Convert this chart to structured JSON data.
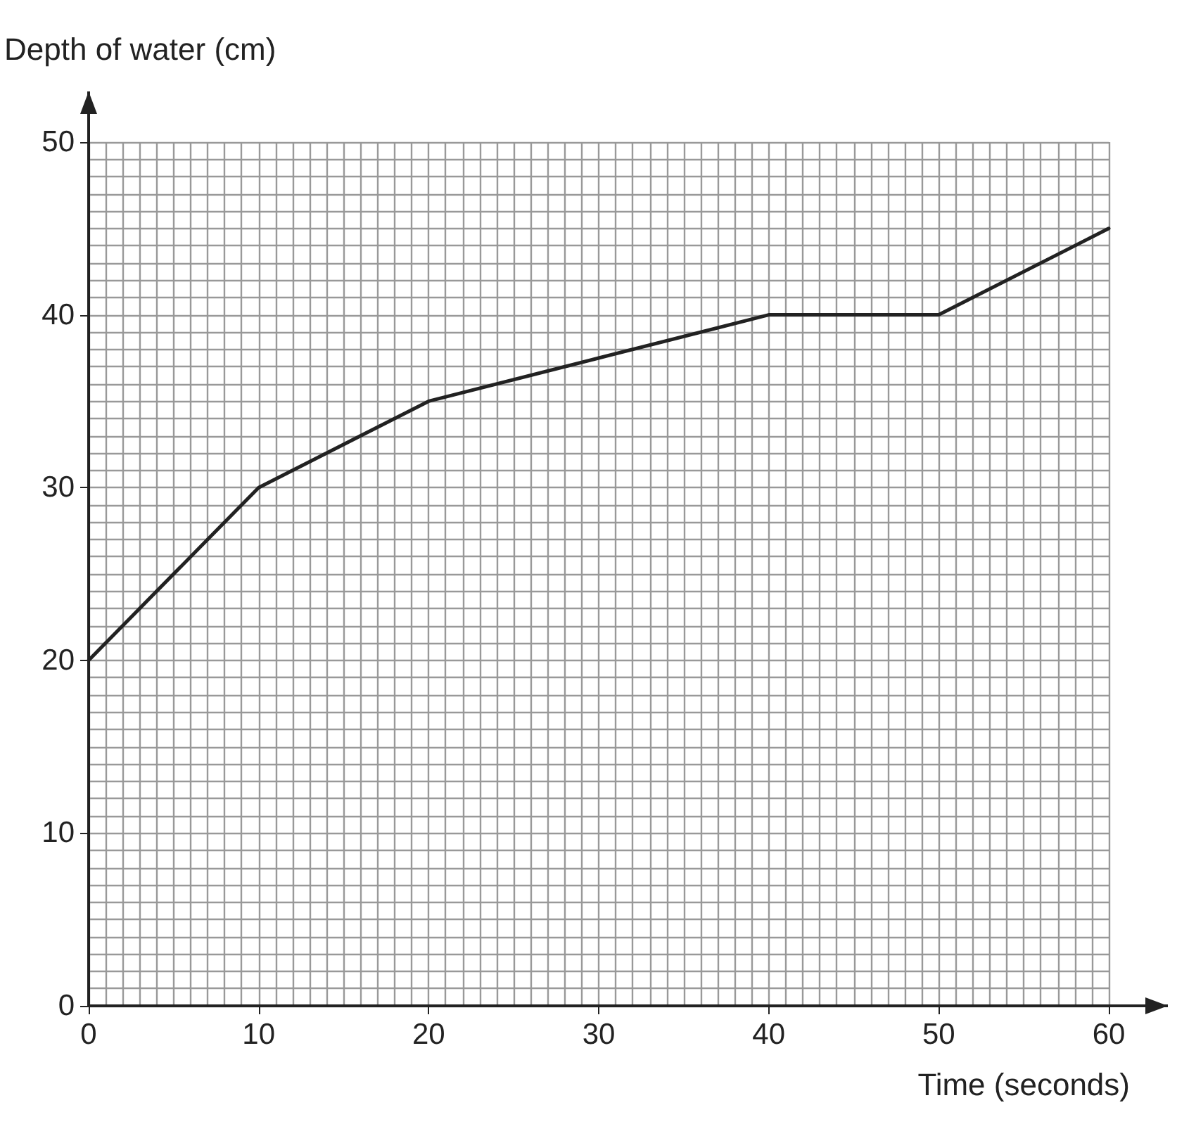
{
  "chart_data": {
    "type": "line",
    "xlabel": "Time (seconds)",
    "ylabel": "Depth of water (cm)",
    "x": [
      0,
      10,
      20,
      30,
      40,
      50,
      60
    ],
    "series": [
      {
        "color": "#222222",
        "values": [
          20,
          30,
          35,
          37.5,
          40,
          40,
          45
        ]
      }
    ],
    "xlim": [
      0,
      60
    ],
    "xticks": [
      0,
      10,
      20,
      30,
      40,
      50,
      60
    ],
    "ylim": [
      0,
      50
    ],
    "yticks": [
      0,
      10,
      20,
      30,
      40,
      50
    ],
    "grid": true,
    "marker": "none",
    "line_style": "solid"
  }
}
